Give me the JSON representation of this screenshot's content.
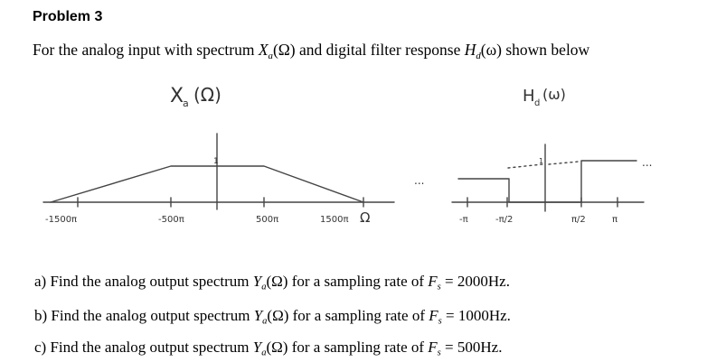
{
  "problem": {
    "title": "Problem 3"
  },
  "intro": {
    "prefix": "For the analog input with spectrum ",
    "X_sym": "X",
    "X_sub": "a",
    "X_arg": "(Ω)",
    "middle": " and digital filter response ",
    "H_sym": "H",
    "H_sub": "d",
    "H_arg": "(ω)",
    "suffix": " shown below"
  },
  "figure": {
    "left_plot": {
      "title": "X",
      "title_sub": "a",
      "title_arg": "(Ω)",
      "peak_label": "1",
      "ticks": [
        "-1500π",
        "-500π",
        "500π",
        "1500π"
      ],
      "axis_label": "Ω"
    },
    "right_plot": {
      "title": "H",
      "title_sub": "d",
      "title_arg": "(ω)",
      "peak_label": "1",
      "ticks": [
        "-π",
        "-π/2",
        "π/2",
        "π"
      ],
      "continuation": "...",
      "continuation_left": "..."
    }
  },
  "questions": [
    {
      "part": "a) Find the analog output spectrum ",
      "sym": "Y",
      "sub": "a",
      "arg": "(Ω)",
      "mid": " for a sampling rate of ",
      "fs": "F",
      "fs_sub": "s",
      "value": " = 2000Hz."
    },
    {
      "part": "b) Find the analog output spectrum ",
      "sym": "Y",
      "sub": "a",
      "arg": "(Ω)",
      "mid": " for a sampling rate of ",
      "fs": "F",
      "fs_sub": "s",
      "value": " = 1000Hz."
    },
    {
      "part": "c) Find the analog output spectrum ",
      "sym": "Y",
      "sub": "a",
      "arg": "(Ω)",
      "mid": " for a sampling rate of ",
      "fs": "F",
      "fs_sub": "s",
      "value": " = 500Hz."
    }
  ]
}
